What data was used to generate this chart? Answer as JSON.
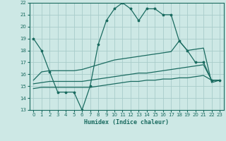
{
  "xlabel": "Humidex (Indice chaleur)",
  "xlim": [
    -0.5,
    23.5
  ],
  "ylim": [
    13,
    22
  ],
  "xticks": [
    0,
    1,
    2,
    3,
    4,
    5,
    6,
    7,
    8,
    9,
    10,
    11,
    12,
    13,
    14,
    15,
    16,
    17,
    18,
    19,
    20,
    21,
    22,
    23
  ],
  "yticks": [
    13,
    14,
    15,
    16,
    17,
    18,
    19,
    20,
    21,
    22
  ],
  "bg_color": "#cde8e5",
  "line_color": "#1a6b60",
  "grid_color": "#a8ccca",
  "line1_y": [
    19,
    18,
    16.2,
    14.5,
    14.5,
    14.5,
    13,
    15,
    18.5,
    20.5,
    21.5,
    22,
    21.5,
    20.5,
    21.5,
    21.5,
    21,
    21,
    18.8,
    18,
    17,
    17,
    15.5,
    15.5
  ],
  "line2_y": [
    15.5,
    16.2,
    16.3,
    16.3,
    16.3,
    16.3,
    16.4,
    16.6,
    16.8,
    17.0,
    17.2,
    17.3,
    17.4,
    17.5,
    17.6,
    17.7,
    17.8,
    17.9,
    18.8,
    18.0,
    18.1,
    18.2,
    15.3,
    15.5
  ],
  "line3_y": [
    15.2,
    15.3,
    15.4,
    15.4,
    15.4,
    15.4,
    15.4,
    15.5,
    15.6,
    15.7,
    15.8,
    15.9,
    16.0,
    16.1,
    16.1,
    16.2,
    16.3,
    16.4,
    16.5,
    16.6,
    16.7,
    16.8,
    15.5,
    15.5
  ],
  "line4_y": [
    14.8,
    14.9,
    14.9,
    14.9,
    14.9,
    14.9,
    14.9,
    14.9,
    15.0,
    15.1,
    15.2,
    15.3,
    15.4,
    15.4,
    15.5,
    15.5,
    15.6,
    15.6,
    15.7,
    15.7,
    15.8,
    15.9,
    15.5,
    15.5
  ]
}
